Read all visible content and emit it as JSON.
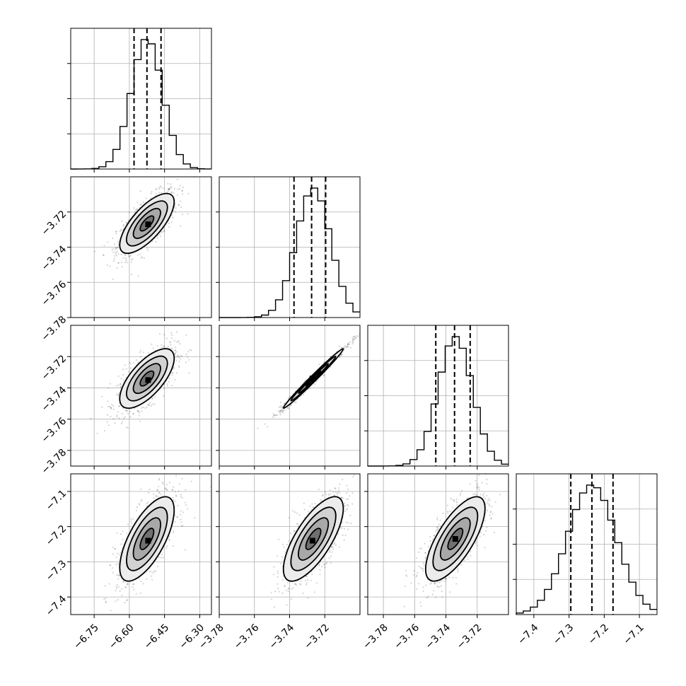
{
  "chart_data": {
    "type": "corner",
    "title": "",
    "parameters": [
      {
        "range": [
          -6.85,
          -6.25
        ],
        "ticks": [
          -6.75,
          -6.6,
          -6.45,
          -6.3
        ],
        "tick_labels": [
          "−6.75",
          "−6.60",
          "−6.45",
          "−6.30"
        ],
        "quantiles": [
          -6.58,
          -6.525,
          -6.465
        ],
        "mean": -6.525,
        "sd": 0.058
      },
      {
        "range": [
          -3.78,
          -3.7
        ],
        "ticks": [
          -3.78,
          -3.76,
          -3.74,
          -3.72
        ],
        "tick_labels": [
          "−3.78",
          "−3.76",
          "−3.74",
          "−3.72"
        ],
        "quantiles": [
          -3.7375,
          -3.7275,
          -3.7195
        ],
        "mean": -3.7265,
        "sd": 0.0085
      },
      {
        "range": [
          -3.79,
          -3.7
        ],
        "ticks": [
          -3.78,
          -3.76,
          -3.74,
          -3.72
        ],
        "tick_labels": [
          "−3.78",
          "−3.76",
          "−3.74",
          "−3.72"
        ],
        "quantiles": [
          -3.7465,
          -3.7345,
          -3.7245
        ],
        "mean": -3.734,
        "sd": 0.0095
      },
      {
        "range": [
          -7.45,
          -7.05
        ],
        "ticks": [
          -7.4,
          -7.3,
          -7.2,
          -7.1
        ],
        "tick_labels": [
          "−7.4",
          "−7.3",
          "−7.2",
          "−7.1"
        ],
        "quantiles": [
          -7.295,
          -7.235,
          -7.175
        ],
        "mean": -7.235,
        "sd": 0.06
      }
    ],
    "pairs": [
      {
        "row": 1,
        "col": 0,
        "correlation": 0.72,
        "peak": [
          -6.52,
          -3.727
        ]
      },
      {
        "row": 2,
        "col": 0,
        "correlation": 0.68,
        "peak": [
          -6.52,
          -3.735
        ]
      },
      {
        "row": 2,
        "col": 1,
        "correlation": 0.99,
        "peak": [
          -3.727,
          -3.734
        ]
      },
      {
        "row": 3,
        "col": 0,
        "correlation": 0.68,
        "peak": [
          -6.52,
          -7.24
        ]
      },
      {
        "row": 3,
        "col": 1,
        "correlation": 0.72,
        "peak": [
          -3.727,
          -7.24
        ]
      },
      {
        "row": 3,
        "col": 2,
        "correlation": 0.72,
        "peak": [
          -3.734,
          -7.235
        ]
      }
    ],
    "grid": true,
    "histogram_bins": 20,
    "contour_levels": 4
  }
}
